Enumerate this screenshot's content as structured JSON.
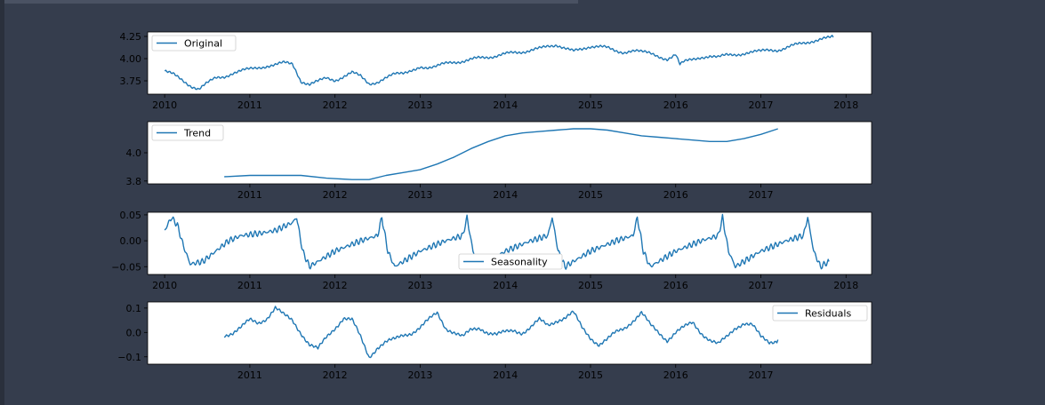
{
  "figure": {
    "plot_bg": "#ffffff",
    "tick_label_color": "#000000",
    "line_color": "#1f77b4"
  },
  "chart_data": [
    {
      "type": "line",
      "legend": "Original",
      "legend_position": "upper-left",
      "xlim": [
        2009.8,
        2018.3
      ],
      "ylim": [
        3.6,
        4.3
      ],
      "xticks": [
        2010,
        2011,
        2012,
        2013,
        2014,
        2015,
        2016,
        2017,
        2018
      ],
      "yticks": [
        3.75,
        4.0,
        4.25
      ],
      "ytick_labels": [
        "3.75",
        "4.00",
        "4.25"
      ],
      "x": [
        2010.0,
        2010.1,
        2010.2,
        2010.3,
        2010.4,
        2010.5,
        2010.6,
        2010.7,
        2010.8,
        2010.9,
        2011.0,
        2011.1,
        2011.2,
        2011.3,
        2011.4,
        2011.5,
        2011.55,
        2011.6,
        2011.7,
        2011.8,
        2011.9,
        2012.0,
        2012.1,
        2012.2,
        2012.3,
        2012.4,
        2012.5,
        2012.6,
        2012.7,
        2012.8,
        2012.9,
        2013.0,
        2013.2,
        2013.4,
        2013.6,
        2013.8,
        2014.0,
        2014.2,
        2014.4,
        2014.5,
        2014.6,
        2014.7,
        2014.8,
        2014.9,
        2015.0,
        2015.2,
        2015.4,
        2015.6,
        2015.7,
        2015.8,
        2015.9,
        2016.0,
        2016.05,
        2016.1,
        2016.2,
        2016.3,
        2016.4,
        2016.5,
        2016.6,
        2016.7,
        2016.8,
        2016.9,
        2017.0,
        2017.2,
        2017.4,
        2017.6,
        2017.8,
        2017.85
      ],
      "values": [
        3.86,
        3.82,
        3.76,
        3.7,
        3.66,
        3.72,
        3.78,
        3.8,
        3.84,
        3.86,
        3.88,
        3.9,
        3.92,
        3.93,
        3.95,
        3.94,
        3.85,
        3.75,
        3.71,
        3.74,
        3.78,
        3.76,
        3.8,
        3.84,
        3.8,
        3.72,
        3.74,
        3.78,
        3.82,
        3.84,
        3.88,
        3.9,
        3.92,
        3.96,
        3.99,
        4.02,
        4.05,
        4.08,
        4.11,
        4.14,
        4.16,
        4.12,
        4.08,
        4.1,
        4.14,
        4.12,
        4.07,
        4.08,
        4.05,
        4.02,
        4.0,
        4.05,
        3.93,
        3.96,
        3.99,
        4.02,
        4.03,
        4.01,
        4.04,
        4.05,
        4.06,
        4.07,
        4.08,
        4.1,
        4.15,
        4.2,
        4.23,
        4.24
      ],
      "grid": false
    },
    {
      "type": "line",
      "legend": "Trend",
      "legend_position": "upper-left",
      "xlim": [
        2009.8,
        2018.3
      ],
      "ylim": [
        3.78,
        4.22
      ],
      "xticks": [
        2011,
        2012,
        2013,
        2014,
        2015,
        2016,
        2017
      ],
      "yticks": [
        3.8,
        4.0
      ],
      "ytick_labels": [
        "3.8",
        "4.0"
      ],
      "x": [
        2010.7,
        2011.0,
        2011.3,
        2011.6,
        2011.9,
        2012.2,
        2012.4,
        2012.6,
        2012.8,
        2013.0,
        2013.2,
        2013.4,
        2013.6,
        2013.8,
        2014.0,
        2014.2,
        2014.4,
        2014.6,
        2014.8,
        2015.0,
        2015.2,
        2015.4,
        2015.6,
        2015.8,
        2016.0,
        2016.2,
        2016.4,
        2016.6,
        2016.8,
        2017.0,
        2017.2
      ],
      "values": [
        3.83,
        3.84,
        3.84,
        3.84,
        3.82,
        3.81,
        3.81,
        3.84,
        3.86,
        3.88,
        3.92,
        3.97,
        4.03,
        4.08,
        4.12,
        4.14,
        4.15,
        4.16,
        4.17,
        4.17,
        4.16,
        4.14,
        4.12,
        4.11,
        4.1,
        4.09,
        4.08,
        4.08,
        4.1,
        4.13,
        4.17
      ],
      "grid": false
    },
    {
      "type": "line",
      "legend": "Seasonality",
      "legend_position": "lower-center",
      "xlim": [
        2009.8,
        2018.3
      ],
      "ylim": [
        -0.065,
        0.055
      ],
      "xticks": [
        2010,
        2011,
        2012,
        2013,
        2014,
        2015,
        2016,
        2017,
        2018
      ],
      "yticks": [
        -0.05,
        0.0,
        0.05
      ],
      "ytick_labels": [
        "−0.05",
        "0.00",
        "0.05"
      ],
      "x": [
        2010.0,
        2010.08,
        2010.15,
        2010.22,
        2010.3,
        2010.45,
        2010.6,
        2010.75,
        2010.9,
        2011.0,
        2011.15,
        2011.3,
        2011.5,
        2011.55,
        2011.62,
        2011.7,
        2011.8,
        2011.9,
        2012.0,
        2012.15,
        2012.3,
        2012.5,
        2012.7,
        2012.9,
        2013.0,
        2013.05,
        2013.12,
        2013.2,
        2013.3
      ],
      "values": [
        0.02,
        0.045,
        0.03,
        -0.01,
        -0.045,
        -0.04,
        -0.02,
        0.0,
        0.01,
        0.012,
        0.015,
        0.02,
        0.035,
        0.045,
        -0.02,
        -0.05,
        -0.04,
        -0.03,
        -0.02,
        -0.01,
        0.0,
        0.01,
        0.015,
        0.02,
        0.03,
        0.045,
        -0.02,
        -0.05,
        -0.04
      ],
      "pattern_period_years": 1.0,
      "grid": false
    },
    {
      "type": "line",
      "legend": "Residuals",
      "legend_position": "upper-right",
      "xlim": [
        2009.8,
        2018.3
      ],
      "ylim": [
        -0.13,
        0.125
      ],
      "xticks": [
        2011,
        2012,
        2013,
        2014,
        2015,
        2016,
        2017
      ],
      "yticks": [
        -0.1,
        0.0,
        0.1
      ],
      "ytick_labels": [
        "−0.1",
        "0.0",
        "0.1"
      ],
      "x": [
        2010.7,
        2010.8,
        2010.9,
        2011.0,
        2011.1,
        2011.2,
        2011.3,
        2011.4,
        2011.5,
        2011.6,
        2011.7,
        2011.8,
        2011.9,
        2012.0,
        2012.1,
        2012.2,
        2012.3,
        2012.4,
        2012.5,
        2012.6,
        2012.7,
        2012.8,
        2012.9,
        2013.0,
        2013.1,
        2013.2,
        2013.3,
        2013.4,
        2013.5,
        2013.6,
        2013.7,
        2013.8,
        2013.9,
        2014.0,
        2014.1,
        2014.2,
        2014.3,
        2014.4,
        2014.5,
        2014.6,
        2014.7,
        2014.8,
        2014.9,
        2015.0,
        2015.1,
        2015.2,
        2015.3,
        2015.4,
        2015.5,
        2015.6,
        2015.7,
        2015.8,
        2015.9,
        2016.0,
        2016.1,
        2016.2,
        2016.3,
        2016.4,
        2016.5,
        2016.6,
        2016.7,
        2016.8,
        2016.9,
        2017.0,
        2017.1,
        2017.2
      ],
      "values": [
        -0.01,
        0.0,
        0.02,
        0.05,
        0.04,
        0.06,
        0.1,
        0.07,
        0.05,
        0.0,
        -0.05,
        -0.07,
        -0.02,
        0.02,
        0.06,
        0.05,
        -0.02,
        -0.1,
        -0.06,
        -0.04,
        -0.03,
        -0.01,
        0.0,
        0.02,
        0.05,
        0.08,
        0.02,
        0.0,
        -0.02,
        0.01,
        0.02,
        0.0,
        -0.01,
        0.0,
        0.01,
        0.0,
        0.02,
        0.05,
        0.03,
        0.05,
        0.06,
        0.08,
        0.02,
        -0.02,
        -0.05,
        -0.03,
        0.0,
        0.02,
        0.05,
        0.08,
        0.03,
        0.0,
        -0.03,
        0.0,
        0.02,
        0.04,
        0.0,
        -0.03,
        -0.05,
        -0.02,
        0.02,
        0.04,
        0.03,
        -0.02,
        -0.04,
        -0.03
      ],
      "grid": false
    }
  ]
}
